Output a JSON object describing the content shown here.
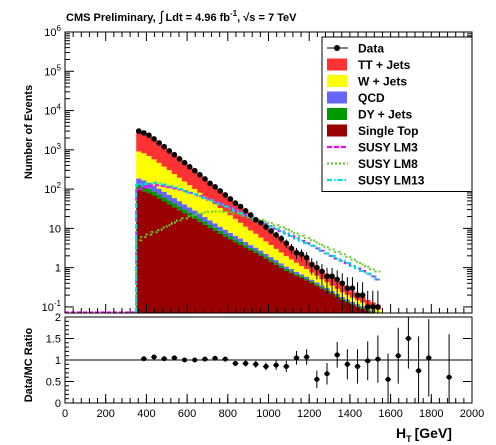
{
  "chart_data": [
    {
      "type": "histogram",
      "title": "CMS Preliminary, ∫ Ldt = 4.96 fb⁻¹, √s = 7 TeV",
      "title_parts": {
        "prefix": "CMS Preliminary,",
        "lumi_pre": "Ldt = 4.96 fb",
        "lumi_exp": "-1",
        "energy": ", √s = 7 TeV",
        "integral": "∫"
      },
      "xlabel": "H_T [GeV]",
      "xlabel_parts": {
        "main": "H",
        "sub": "T",
        "unit": "[GeV]"
      },
      "ylabel": "Number of Events",
      "yscale": "log",
      "xlim": [
        0,
        2000
      ],
      "ylim": [
        0.07,
        1000000
      ],
      "y_ticks": [
        {
          "v": 0.1,
          "base": "10",
          "exp": "-1"
        },
        {
          "v": 1,
          "base": "1",
          "exp": ""
        },
        {
          "v": 10,
          "base": "10",
          "exp": ""
        },
        {
          "v": 100,
          "base": "10",
          "exp": "2"
        },
        {
          "v": 1000,
          "base": "10",
          "exp": "3"
        },
        {
          "v": 10000,
          "base": "10",
          "exp": "4"
        },
        {
          "v": 100000,
          "base": "10",
          "exp": "5"
        },
        {
          "v": 1000000,
          "base": "10",
          "exp": "6"
        }
      ],
      "bin_edges_start": 350,
      "bin_width": 25,
      "stack_order": [
        "Single Top",
        "DY + Jets",
        "QCD",
        "W + Jets",
        "TT + Jets"
      ],
      "total_mc": [
        2900,
        2600,
        2200,
        1800,
        1450,
        1150,
        920,
        730,
        580,
        460,
        365,
        290,
        230,
        180,
        142,
        112,
        88,
        70,
        55,
        44,
        35,
        27,
        21,
        17,
        13.5,
        10.5,
        8.3,
        6.6,
        5.2,
        4.1,
        3.3,
        2.6,
        2.1,
        1.7,
        1.35,
        1.08,
        0.86,
        0.7,
        0.56,
        0.45,
        0.36,
        0.3,
        0.25,
        0.21,
        0.18,
        0.15,
        0.13,
        0.11
      ],
      "series": [
        {
          "name": "Single Top",
          "color": "#990000",
          "frac": [
            0.034,
            0.034,
            0.036,
            0.038,
            0.04,
            0.042,
            0.044,
            0.047,
            0.05,
            0.053,
            0.056,
            0.06,
            0.064,
            0.068,
            0.072,
            0.077,
            0.082,
            0.088,
            0.095,
            0.1,
            0.11,
            0.12,
            0.13,
            0.14,
            0.15,
            0.16,
            0.17,
            0.18,
            0.19,
            0.2,
            0.22,
            0.24,
            0.26,
            0.28,
            0.3,
            0.32,
            0.34,
            0.36,
            0.38,
            0.4,
            0.42,
            0.44,
            0.46,
            0.48,
            0.5,
            0.52,
            0.54,
            0.56
          ]
        },
        {
          "name": "DY + Jets",
          "color": "#009900",
          "frac": [
            0.01,
            0.01,
            0.01,
            0.01,
            0.011,
            0.011,
            0.012,
            0.012,
            0.013,
            0.013,
            0.014,
            0.014,
            0.015,
            0.015,
            0.016,
            0.016,
            0.017,
            0.017,
            0.018,
            0.018,
            0.019,
            0.019,
            0.02,
            0.02,
            0.021,
            0.022,
            0.023,
            0.024,
            0.025,
            0.026,
            0.027,
            0.028,
            0.029,
            0.03,
            0.031,
            0.032,
            0.033,
            0.034,
            0.035,
            0.036,
            0.037,
            0.038,
            0.039,
            0.04,
            0.041,
            0.042,
            0.043,
            0.044
          ]
        },
        {
          "name": "QCD",
          "color": "#6666ff",
          "frac": [
            0.02,
            0.02,
            0.02,
            0.02,
            0.02,
            0.021,
            0.021,
            0.022,
            0.022,
            0.023,
            0.023,
            0.024,
            0.024,
            0.025,
            0.025,
            0.026,
            0.026,
            0.027,
            0.027,
            0.028,
            0.028,
            0.029,
            0.029,
            0.03,
            0.03,
            0.031,
            0.031,
            0.032,
            0.032,
            0.033,
            0.033,
            0.034,
            0.034,
            0.035,
            0.035,
            0.036,
            0.036,
            0.037,
            0.037,
            0.038,
            0.038,
            0.039,
            0.039,
            0.04,
            0.04,
            0.041,
            0.041,
            0.042
          ]
        },
        {
          "name": "W + Jets",
          "color": "#ffff00",
          "frac": [
            0.25,
            0.25,
            0.25,
            0.25,
            0.25,
            0.25,
            0.25,
            0.25,
            0.25,
            0.25,
            0.25,
            0.25,
            0.25,
            0.25,
            0.25,
            0.25,
            0.25,
            0.25,
            0.25,
            0.25,
            0.24,
            0.24,
            0.24,
            0.24,
            0.23,
            0.23,
            0.23,
            0.22,
            0.22,
            0.22,
            0.21,
            0.21,
            0.2,
            0.2,
            0.19,
            0.19,
            0.18,
            0.18,
            0.17,
            0.17,
            0.16,
            0.16,
            0.15,
            0.15,
            0.14,
            0.14,
            0.13,
            0.13
          ]
        },
        {
          "name": "TT + Jets",
          "color": "#ff3333",
          "frac": null
        }
      ],
      "data_points": {
        "name": "Data",
        "values": [
          3000,
          2700,
          2350,
          1900,
          1500,
          1200,
          940,
          750,
          590,
          470,
          370,
          295,
          232,
          182,
          140,
          114,
          90,
          71,
          56,
          44,
          36,
          28,
          22,
          16.5,
          13.8,
          10.8,
          8.6,
          6.8,
          5.5,
          4.2,
          3.1,
          2.4,
          2.2,
          1.8,
          1.2,
          1.0,
          0.8,
          0.6,
          0.6,
          0.5,
          0.4,
          0.3,
          0.3,
          0.2,
          0.2,
          0.1,
          0.1,
          0.1
        ]
      },
      "overlays": [
        {
          "name": "SUSY LM3",
          "color": "#ff00ff",
          "style": "dashed",
          "values": [
            100,
            110,
            120,
            130,
            125,
            120,
            112,
            104,
            96,
            88,
            80,
            73,
            66,
            59,
            53,
            47,
            42,
            37,
            33,
            29,
            25,
            22,
            19.5,
            17,
            15,
            13,
            11.3,
            9.8,
            8.5,
            7.4,
            6.4,
            5.6,
            4.8,
            4.2,
            3.6,
            3.1,
            2.7,
            2.3,
            2.0,
            1.7,
            1.5,
            1.3,
            1.1,
            0.95,
            0.82,
            0.7,
            0.6,
            0.5
          ]
        },
        {
          "name": "SUSY LM8",
          "color": "#66cc33",
          "style": "dotted",
          "values": [
            5,
            6,
            7,
            8,
            9,
            10.5,
            12,
            14,
            16,
            18,
            20,
            22,
            24,
            25.5,
            26.5,
            27,
            27,
            26.5,
            25.5,
            24,
            22.5,
            21,
            19.5,
            18,
            16.5,
            15,
            13.5,
            12,
            10.7,
            9.5,
            8.4,
            7.4,
            6.5,
            5.7,
            5,
            4.4,
            3.8,
            3.3,
            2.9,
            2.5,
            2.2,
            1.9,
            1.6,
            1.4,
            1.2,
            1.05,
            0.9,
            0.8
          ]
        },
        {
          "name": "SUSY LM13",
          "color": "#00dddd",
          "style": "dashdot",
          "values": [
            130,
            135,
            140,
            145,
            140,
            130,
            120,
            110,
            100,
            90,
            82,
            74,
            66,
            59,
            52,
            46,
            41,
            36,
            32,
            28,
            24.5,
            21.5,
            19,
            16.5,
            14.5,
            12.5,
            11,
            9.6,
            8.4,
            7.3,
            6.4,
            5.5,
            4.8,
            4.2,
            3.6,
            3.1,
            2.7,
            2.3,
            2.0,
            1.7,
            1.5,
            1.3,
            1.1,
            0.95,
            0.82,
            0.7,
            0.6,
            0.5
          ]
        }
      ],
      "legend": {
        "placement": "top-right",
        "entries": [
          "Data",
          "TT + Jets",
          "W + Jets",
          "QCD",
          "DY + Jets",
          "Single Top",
          "SUSY LM3",
          "SUSY LM8",
          "SUSY LM13"
        ]
      }
    },
    {
      "type": "scatter",
      "ylabel": "Data/MC Ratio",
      "xlabel": "H_T [GeV]",
      "xlim": [
        0,
        2000
      ],
      "ylim": [
        0,
        2
      ],
      "y_tick_labels": [
        "0",
        "0.5",
        "1",
        "1.5",
        "2"
      ],
      "x_tick_labels": [
        "0",
        "200",
        "400",
        "600",
        "800",
        "1000",
        "1200",
        "1400",
        "1600",
        "1800",
        "2000"
      ],
      "reference_line": 1,
      "points": [
        {
          "x": 387.5,
          "y": 1.03,
          "err": 0.02
        },
        {
          "x": 437.5,
          "y": 1.07,
          "err": 0.02
        },
        {
          "x": 487.5,
          "y": 1.03,
          "err": 0.03
        },
        {
          "x": 537.5,
          "y": 1.05,
          "err": 0.03
        },
        {
          "x": 587.5,
          "y": 1.0,
          "err": 0.03
        },
        {
          "x": 637.5,
          "y": 1.0,
          "err": 0.04
        },
        {
          "x": 687.5,
          "y": 1.02,
          "err": 0.04
        },
        {
          "x": 737.5,
          "y": 1.04,
          "err": 0.05
        },
        {
          "x": 787.5,
          "y": 1.02,
          "err": 0.05
        },
        {
          "x": 837.5,
          "y": 0.92,
          "err": 0.06
        },
        {
          "x": 887.5,
          "y": 0.92,
          "err": 0.07
        },
        {
          "x": 937.5,
          "y": 0.9,
          "err": 0.08
        },
        {
          "x": 987.5,
          "y": 0.85,
          "err": 0.09
        },
        {
          "x": 1037.5,
          "y": 0.88,
          "err": 0.11
        },
        {
          "x": 1087.5,
          "y": 0.85,
          "err": 0.13
        },
        {
          "x": 1137.5,
          "y": 1.05,
          "err": 0.16
        },
        {
          "x": 1187.5,
          "y": 1.07,
          "err": 0.18
        },
        {
          "x": 1237.5,
          "y": 0.55,
          "err": 0.2
        },
        {
          "x": 1287.5,
          "y": 0.68,
          "err": 0.25
        },
        {
          "x": 1337.5,
          "y": 1.12,
          "err": 0.3
        },
        {
          "x": 1387.5,
          "y": 0.9,
          "err": 0.35
        },
        {
          "x": 1437.5,
          "y": 0.85,
          "err": 0.4
        },
        {
          "x": 1487.5,
          "y": 0.98,
          "err": 0.45
        },
        {
          "x": 1537.5,
          "y": 1.02,
          "err": 0.55
        },
        {
          "x": 1587.5,
          "y": 0.55,
          "err": 0.6
        },
        {
          "x": 1637.5,
          "y": 1.1,
          "err": 0.65
        },
        {
          "x": 1687.5,
          "y": 1.5,
          "err": 0.7
        },
        {
          "x": 1737.5,
          "y": 0.75,
          "err": 0.8
        },
        {
          "x": 1787.5,
          "y": 1.05,
          "err": 0.9
        },
        {
          "x": 1887.5,
          "y": 0.6,
          "err": 1.0
        }
      ]
    }
  ]
}
